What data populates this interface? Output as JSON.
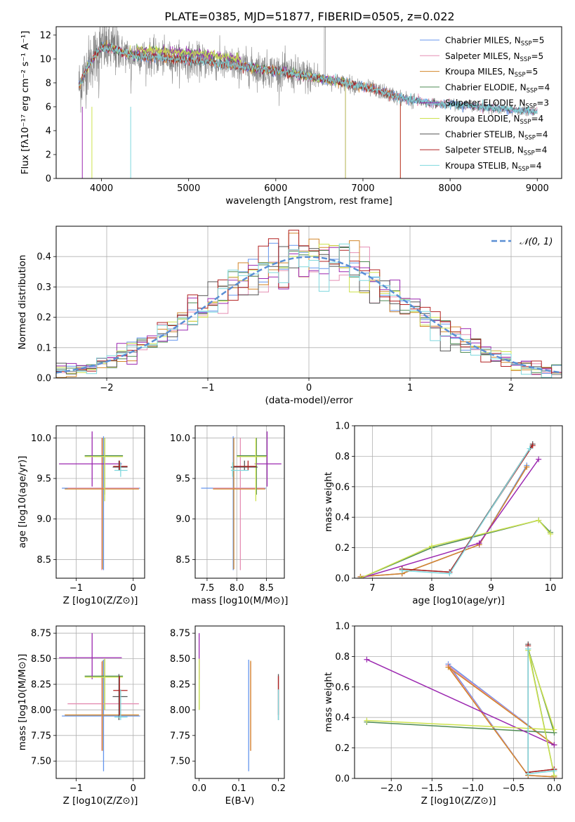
{
  "figure_title": "PLATE=0385, MJD=51877, FIBERID=0505, z=0.022",
  "colors": {
    "Chabrier MILES": "#6495ed",
    "Salpeter MILES": "#e58fb4",
    "Kroupa MILES": "#d2862a",
    "Chabrier ELODIE": "#4e8a55",
    "Salpeter ELODIE": "#9b27b0",
    "Kroupa ELODIE": "#cde24e",
    "Chabrier STELIB": "#555555",
    "Salpeter STELIB": "#b22222",
    "Kroupa STELIB": "#7fd8de",
    "data": "#808080",
    "gaussian": "#5b8fd4"
  },
  "chart_data": [
    {
      "id": "spectrum",
      "type": "line",
      "title": "PLATE=0385, MJD=51877, FIBERID=0505, z=0.022",
      "xlabel": "wavelength [Angstrom, rest frame]",
      "ylabel": "Flux [fλ10⁻¹⁷ erg cm⁻² s⁻¹ A⁻¹]",
      "xlim": [
        3480,
        9280
      ],
      "ylim": [
        0,
        12.7
      ],
      "xticks": [
        4000,
        5000,
        6000,
        7000,
        8000,
        9000
      ],
      "yticks": [
        0,
        2,
        4,
        6,
        8,
        10,
        12
      ],
      "grid": false,
      "legend_position": "top-right",
      "legend": [
        {
          "model": "Chabrier MILES",
          "n": "5"
        },
        {
          "model": "Salpeter MILES",
          "n": "5"
        },
        {
          "model": "Kroupa MILES",
          "n": "5"
        },
        {
          "model": "Chabrier ELODIE",
          "n": "4"
        },
        {
          "model": "Salpeter ELODIE",
          "n": "3"
        },
        {
          "model": "Kroupa ELODIE",
          "n": "4"
        },
        {
          "model": "Chabrier STELIB",
          "n": "4"
        },
        {
          "model": "Salpeter STELIB",
          "n": "4"
        },
        {
          "model": "Kroupa STELIB",
          "n": "4"
        }
      ],
      "continuum_anchors": [
        [
          3750,
          7.8
        ],
        [
          3850,
          9.5
        ],
        [
          3950,
          10.5
        ],
        [
          4000,
          11.0
        ],
        [
          4100,
          10.9
        ],
        [
          4300,
          10.4
        ],
        [
          4500,
          10.2
        ],
        [
          4800,
          10.0
        ],
        [
          5200,
          9.8
        ],
        [
          5600,
          9.4
        ],
        [
          6000,
          9.0
        ],
        [
          6400,
          8.5
        ],
        [
          6800,
          8.0
        ],
        [
          7200,
          7.3
        ],
        [
          7500,
          6.6
        ],
        [
          7800,
          6.3
        ],
        [
          8200,
          6.1
        ],
        [
          8600,
          5.8
        ],
        [
          9000,
          5.6
        ]
      ],
      "data_range": [
        3740,
        9000
      ],
      "models_range": [
        3740,
        9000
      ]
    },
    {
      "id": "residuals",
      "type": "histogram",
      "xlabel": "(data-model)/error",
      "ylabel": "Normed distribution",
      "xlim": [
        -2.5,
        2.5
      ],
      "ylim": [
        0,
        0.5
      ],
      "xticks": [
        -2,
        -1,
        0,
        1,
        2
      ],
      "yticks": [
        0.0,
        0.1,
        0.2,
        0.3,
        0.4
      ],
      "grid": true,
      "legend_position": "top-right",
      "gaussian_label": "𝒩(0, 1)",
      "bin_width": 0.1
    },
    {
      "id": "age-vs-Z",
      "type": "errorbar",
      "xlabel": "Z [log10(Z/Z⊙)]",
      "ylabel": "age  [log10(age/yr)]",
      "xlim": [
        -1.35,
        0.2
      ],
      "ylim": [
        8.27,
        10.15
      ],
      "xticks": [
        -1,
        0
      ],
      "yticks": [
        8.5,
        9.0,
        9.5,
        10.0
      ],
      "grid": true
    },
    {
      "id": "age-vs-mass",
      "type": "errorbar",
      "xlabel": "mass [log10(M/M⊙)]",
      "ylabel": "",
      "xlim": [
        7.3,
        8.8
      ],
      "ylim": [
        8.27,
        10.15
      ],
      "xticks": [
        7.5,
        8.0,
        8.5
      ],
      "yticks": [
        8.5,
        9.0,
        9.5,
        10.0
      ],
      "grid": true
    },
    {
      "id": "weight-vs-age",
      "type": "line",
      "xlabel": "age  [log10(age/yr)]",
      "ylabel": "mass weight",
      "xlim": [
        6.7,
        10.2
      ],
      "ylim": [
        0,
        1
      ],
      "xticks": [
        7,
        8,
        9,
        10
      ],
      "yticks": [
        0.0,
        0.2,
        0.4,
        0.6,
        0.8,
        1.0
      ],
      "grid": true
    },
    {
      "id": "mass-vs-Z",
      "type": "errorbar",
      "xlabel": "Z [log10(Z/Z⊙)]",
      "ylabel": "mass [log10(M/M⊙)]",
      "xlim": [
        -1.35,
        0.2
      ],
      "ylim": [
        7.33,
        8.82
      ],
      "xticks": [
        -1,
        0
      ],
      "yticks": [
        7.5,
        7.75,
        8.0,
        8.25,
        8.5,
        8.75
      ],
      "grid": true
    },
    {
      "id": "mass-vs-ebv",
      "type": "errorbar",
      "xlabel": "E(B-V)",
      "ylabel": "",
      "xlim": [
        -0.01,
        0.215
      ],
      "ylim": [
        7.33,
        8.82
      ],
      "xticks": [
        0.0,
        0.1,
        0.2
      ],
      "yticks": [
        7.5,
        7.75,
        8.0,
        8.25,
        8.5,
        8.75
      ],
      "grid": false
    },
    {
      "id": "weight-vs-Z",
      "type": "line",
      "xlabel": "Z [log10(Z/Z⊙)]",
      "ylabel": "mass weight",
      "xlim": [
        -2.45,
        0.1
      ],
      "ylim": [
        0,
        1
      ],
      "xticks": [
        -2.0,
        -1.5,
        -1.0,
        -0.5,
        0.0
      ],
      "yticks": [
        0.0,
        0.2,
        0.4,
        0.6,
        0.8,
        1.0
      ],
      "grid": true
    }
  ],
  "models": [
    {
      "name": "Chabrier MILES",
      "Z": -0.52,
      "Zerr": [
        -1.25,
        0.12
      ],
      "age": 9.38,
      "ageerr": [
        8.37,
        10.02
      ],
      "mass": 7.94,
      "masserr": [
        7.4,
        8.49
      ],
      "ebv": 0.125,
      "sfh": [
        [
          6.8,
          0.01
        ],
        [
          7.5,
          0.03
        ],
        [
          8.8,
          0.22
        ],
        [
          9.6,
          0.74
        ]
      ],
      "zw": [
        [
          0.0,
          0.01
        ],
        [
          -0.32,
          0.02
        ],
        [
          -1.3,
          0.75
        ],
        [
          0.0,
          0.22
        ]
      ]
    },
    {
      "name": "Salpeter MILES",
      "Z": -0.55,
      "Zerr": [
        -1.15,
        0.1
      ],
      "age": 9.38,
      "ageerr": [
        8.37,
        10.0
      ],
      "mass": 8.06,
      "masserr": [
        7.6,
        8.47
      ],
      "ebv": 0.13,
      "sfh": [
        [
          6.8,
          0.01
        ],
        [
          7.5,
          0.03
        ],
        [
          8.8,
          0.22
        ],
        [
          9.6,
          0.73
        ]
      ],
      "zw": [
        [
          0.0,
          0.01
        ],
        [
          -0.32,
          0.02
        ],
        [
          -1.3,
          0.74
        ],
        [
          0.0,
          0.22
        ]
      ]
    },
    {
      "name": "Kroupa MILES",
      "Z": -0.54,
      "Zerr": [
        -1.2,
        0.1
      ],
      "age": 9.37,
      "ageerr": [
        8.38,
        10.0
      ],
      "mass": 7.95,
      "masserr": [
        7.6,
        8.48
      ],
      "ebv": 0.13,
      "sfh": [
        [
          6.8,
          0.01
        ],
        [
          7.5,
          0.03
        ],
        [
          8.8,
          0.22
        ],
        [
          9.6,
          0.73
        ]
      ],
      "zw": [
        [
          0.0,
          0.01
        ],
        [
          -0.32,
          0.02
        ],
        [
          -1.3,
          0.73
        ],
        [
          0.0,
          0.22
        ]
      ]
    },
    {
      "name": "Chabrier ELODIE",
      "Z": -0.5,
      "Zerr": [
        -0.85,
        -0.18
      ],
      "age": 9.78,
      "ageerr": [
        9.3,
        10.0
      ],
      "mass": 8.33,
      "masserr": [
        8.0,
        8.5
      ],
      "ebv": 0.0,
      "sfh": [
        [
          6.8,
          0.0
        ],
        [
          8.0,
          0.2
        ],
        [
          9.8,
          0.38
        ],
        [
          10.0,
          0.3
        ]
      ],
      "zw": [
        [
          -2.3,
          0.37
        ],
        [
          0.0,
          0.3
        ],
        [
          -0.32,
          0.85
        ],
        [
          0.0,
          0.02
        ]
      ]
    },
    {
      "name": "Salpeter ELODIE",
      "Z": -0.72,
      "Zerr": [
        -1.3,
        -0.2
      ],
      "age": 9.68,
      "ageerr": [
        9.4,
        10.08
      ],
      "mass": 8.51,
      "masserr": [
        8.3,
        8.75
      ],
      "ebv": 0.0,
      "sfh": [
        [
          6.8,
          0.0
        ],
        [
          8.8,
          0.23
        ],
        [
          9.8,
          0.78
        ]
      ],
      "zw": [
        [
          -2.3,
          0.78
        ],
        [
          0.0,
          0.22
        ]
      ]
    },
    {
      "name": "Kroupa ELODIE",
      "Z": -0.5,
      "Zerr": [
        -0.85,
        -0.18
      ],
      "age": 9.77,
      "ageerr": [
        9.22,
        10.0
      ],
      "mass": 8.32,
      "masserr": [
        8.0,
        8.5
      ],
      "ebv": 0.0,
      "sfh": [
        [
          6.8,
          0.0
        ],
        [
          8.0,
          0.21
        ],
        [
          9.8,
          0.38
        ],
        [
          10.0,
          0.29
        ]
      ],
      "zw": [
        [
          -2.3,
          0.38
        ],
        [
          0.0,
          0.32
        ],
        [
          -0.32,
          0.84
        ],
        [
          0.0,
          0.02
        ]
      ]
    },
    {
      "name": "Chabrier STELIB",
      "Z": -0.25,
      "Zerr": [
        -0.36,
        -0.1
      ],
      "age": 9.64,
      "ageerr": [
        9.6,
        9.72
      ],
      "mass": 8.13,
      "masserr": [
        7.9,
        8.35
      ],
      "ebv": 0.2,
      "sfh": [
        [
          7.5,
          0.06
        ],
        [
          8.3,
          0.04
        ],
        [
          9.7,
          0.88
        ]
      ],
      "zw": [
        [
          -0.32,
          0.88
        ],
        [
          -0.32,
          0.04
        ],
        [
          0.0,
          0.06
        ]
      ]
    },
    {
      "name": "Salpeter STELIB",
      "Z": -0.24,
      "Zerr": [
        -0.35,
        -0.1
      ],
      "age": 9.65,
      "ageerr": [
        9.6,
        9.72
      ],
      "mass": 8.19,
      "masserr": [
        7.95,
        8.33
      ],
      "ebv": 0.2,
      "sfh": [
        [
          7.5,
          0.06
        ],
        [
          8.3,
          0.04
        ],
        [
          9.7,
          0.87
        ]
      ],
      "zw": [
        [
          -0.32,
          0.87
        ],
        [
          -0.32,
          0.04
        ],
        [
          0.0,
          0.06
        ]
      ]
    },
    {
      "name": "Kroupa STELIB",
      "Z": -0.22,
      "Zerr": [
        -0.33,
        -0.1
      ],
      "age": 9.6,
      "ageerr": [
        9.52,
        9.7
      ],
      "mass": 7.93,
      "masserr": [
        7.9,
        8.2
      ],
      "ebv": 0.2,
      "sfh": [
        [
          7.5,
          0.05
        ],
        [
          8.3,
          0.03
        ],
        [
          9.65,
          0.85
        ]
      ],
      "zw": [
        [
          -0.32,
          0.85
        ],
        [
          -0.32,
          0.03
        ],
        [
          0.0,
          0.05
        ]
      ]
    }
  ]
}
